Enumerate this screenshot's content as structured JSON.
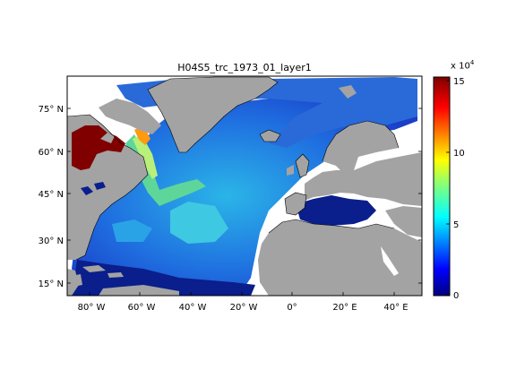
{
  "title": "H04S5_trc_1973_01_layer1",
  "lat_ticks": [
    "75° N",
    "60° N",
    "45° N",
    "30° N",
    "15° N"
  ],
  "lon_ticks": [
    "80° W",
    "60° W",
    "40° W",
    "20° W",
    "0°",
    "20° E",
    "40° E"
  ],
  "colorbar": {
    "multiplier_base": "x 10",
    "multiplier_exp": "4",
    "ticks": [
      "15",
      "10",
      "5",
      "0"
    ],
    "colors": [
      "#00007f",
      "#0000ff",
      "#007fff",
      "#00ffff",
      "#7fff7f",
      "#ffff00",
      "#ff7f00",
      "#ff0000",
      "#7f0000"
    ]
  },
  "colors": {
    "land": "#a3a3a3",
    "no_data": "#ffffff",
    "high_value": "#800000"
  }
}
